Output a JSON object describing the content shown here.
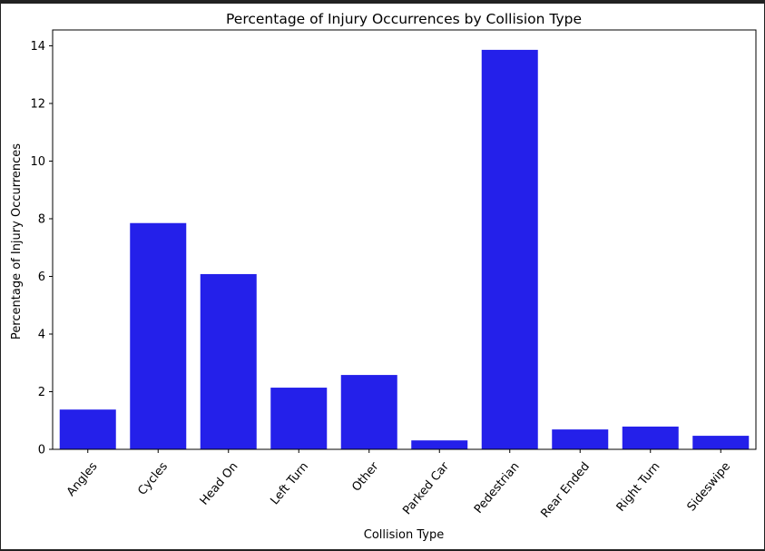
{
  "chart_data": {
    "type": "bar",
    "title": "Percentage of Injury Occurrences by Collision Type",
    "xlabel": "Collision Type",
    "ylabel": "Percentage of Injury Occurrences",
    "categories": [
      "Angles",
      "Cycles",
      "Head On",
      "Left Turn",
      "Other",
      "Parked Car",
      "Pedestrian",
      "Rear Ended",
      "Right Turn",
      "Sideswipe"
    ],
    "values": [
      1.38,
      7.85,
      6.08,
      2.14,
      2.58,
      0.31,
      13.86,
      0.69,
      0.79,
      0.47
    ],
    "ylim": [
      0,
      14.55
    ],
    "yticks": [
      0,
      2,
      4,
      6,
      8,
      10,
      12,
      14
    ],
    "bar_color": "#2420ea",
    "grid": false,
    "legend": "none"
  }
}
